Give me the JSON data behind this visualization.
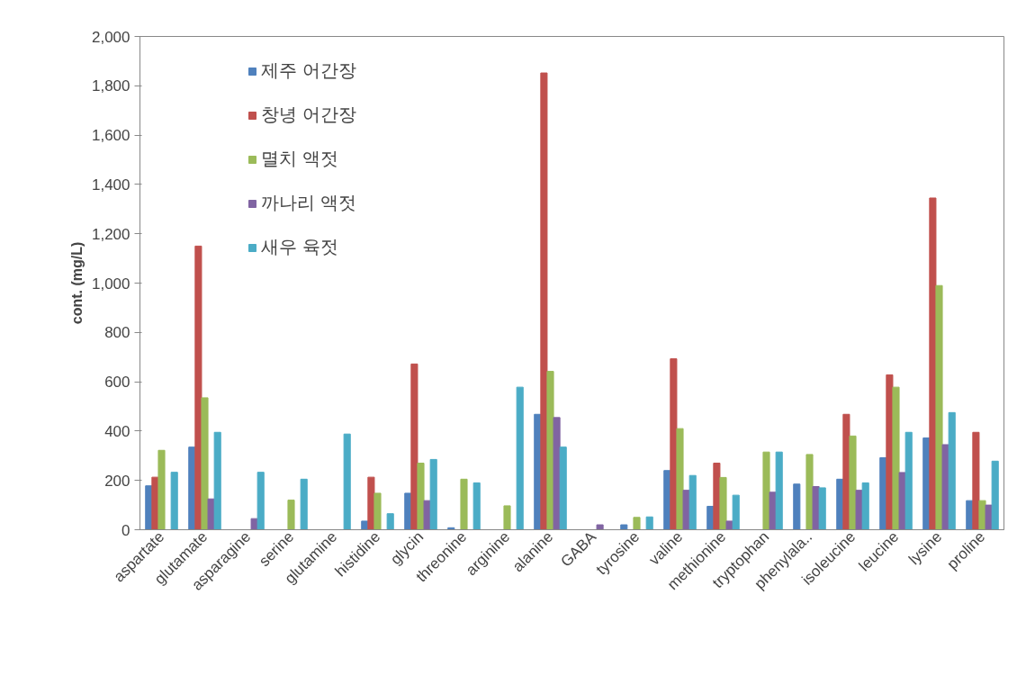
{
  "chart_data": {
    "type": "bar",
    "ylabel": "cont. (mg/L)",
    "categories": [
      "aspartate",
      "glutamate",
      "asparagine",
      "serine",
      "glutamine",
      "histidine",
      "glycin",
      "threonine",
      "arginine",
      "alanine",
      "GABA",
      "tyrosine",
      "valine",
      "methionine",
      "tryptophan",
      "phenylala..",
      "isoleucine",
      "leucine",
      "lysine",
      "proline"
    ],
    "series": [
      {
        "name": "제주 어간장",
        "color": "#4f81bd",
        "values": [
          178,
          335,
          null,
          null,
          null,
          35,
          148,
          8,
          null,
          468,
          null,
          20,
          240,
          95,
          null,
          185,
          205,
          292,
          372,
          118
        ]
      },
      {
        "name": "창녕 어간장",
        "color": "#c0504d",
        "values": [
          213,
          1150,
          null,
          null,
          null,
          213,
          672,
          null,
          null,
          1852,
          null,
          null,
          693,
          270,
          null,
          null,
          468,
          628,
          1345,
          395
        ]
      },
      {
        "name": "멸치 액젓",
        "color": "#9bbb59",
        "values": [
          322,
          535,
          null,
          120,
          null,
          148,
          270,
          205,
          97,
          642,
          null,
          50,
          410,
          212,
          315,
          305,
          380,
          578,
          990,
          118
        ]
      },
      {
        "name": "까나리 액젓",
        "color": "#8064a2",
        "values": [
          null,
          125,
          45,
          null,
          null,
          null,
          118,
          null,
          null,
          455,
          20,
          null,
          160,
          35,
          152,
          175,
          160,
          232,
          345,
          100
        ]
      },
      {
        "name": "새우 육젓",
        "color": "#4bacc6",
        "values": [
          233,
          395,
          233,
          205,
          388,
          65,
          285,
          190,
          578,
          335,
          null,
          52,
          220,
          140,
          315,
          170,
          190,
          395,
          475,
          278
        ]
      }
    ],
    "ylim": [
      0,
      2000
    ],
    "yticks": [
      0,
      200,
      400,
      600,
      800,
      {
        "value": 1000,
        "label": "1,000"
      },
      {
        "value": 1200,
        "label": "1,200"
      },
      {
        "value": 1400,
        "label": "1,400"
      },
      {
        "value": 1600,
        "label": "1,600"
      },
      {
        "value": 1800,
        "label": "1,800"
      },
      {
        "value": 2000,
        "label": "2,000"
      }
    ],
    "grid": false,
    "legend": "top left"
  }
}
